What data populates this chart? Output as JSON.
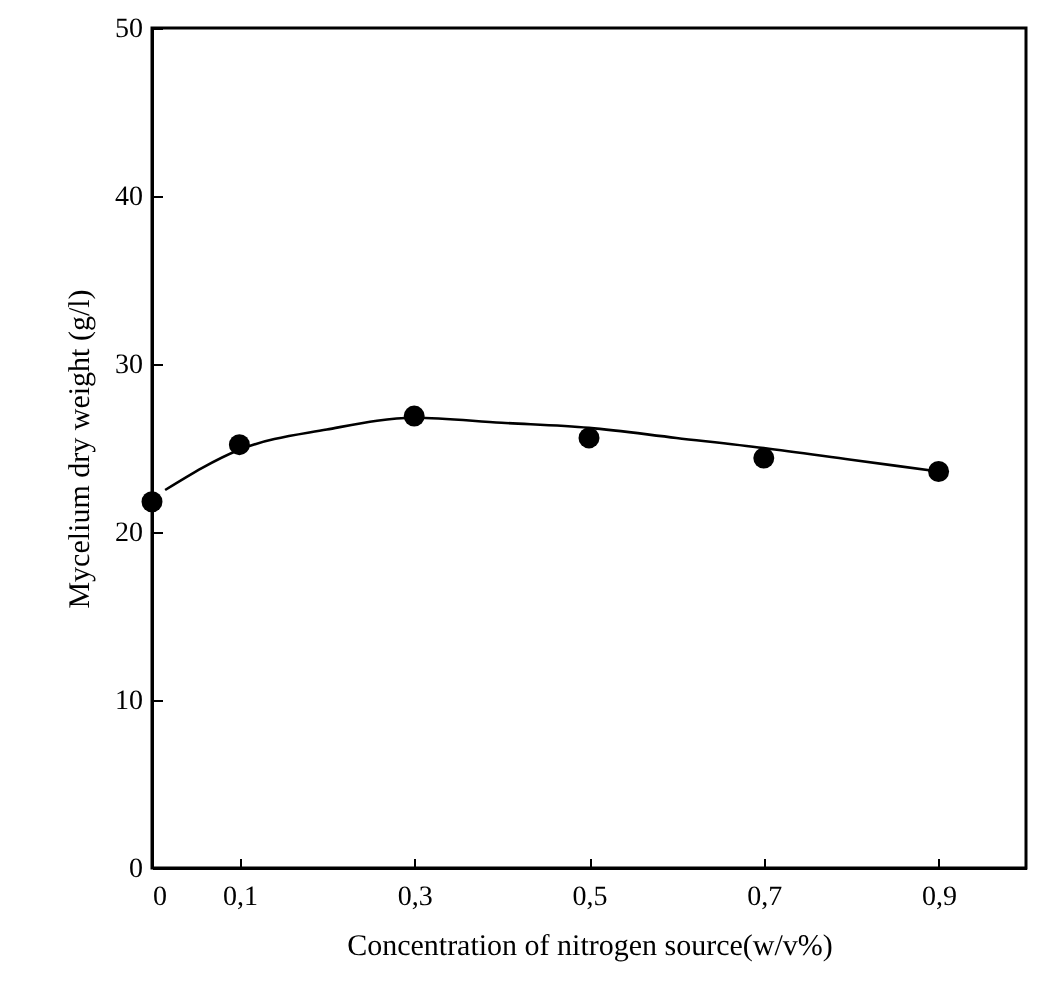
{
  "chart_data": {
    "type": "scatter",
    "xlabel": "Concentration of nitrogen source(w/v%)",
    "ylabel": "Mycelium dry weight (g/l)",
    "x": [
      0,
      0.1,
      0.3,
      0.5,
      0.7,
      0.9
    ],
    "series": [
      {
        "color": "#000000",
        "marker": "circle",
        "values": [
          21.8,
          25.2,
          26.9,
          25.6,
          24.4,
          23.6
        ]
      },
      {
        "type": "line",
        "color": "#000000",
        "line_style": "solid",
        "x": [
          0.015,
          0.1,
          0.2,
          0.3,
          0.4,
          0.5,
          0.6,
          0.7,
          0.8,
          0.9
        ],
        "values": [
          22.5,
          24.9,
          26.1,
          26.8,
          26.5,
          26.2,
          25.6,
          25.0,
          24.3,
          23.6
        ]
      }
    ],
    "xlim": [
      0,
      1
    ],
    "ylim": [
      0,
      50
    ],
    "xticks": [
      0,
      {
        "value": 0.1,
        "label": "0,1"
      },
      {
        "value": 0.3,
        "label": "0,3"
      },
      {
        "value": 0.5,
        "label": "0,5"
      },
      {
        "value": 0.7,
        "label": "0,7"
      },
      {
        "value": 0.9,
        "label": "0,9"
      }
    ],
    "yticks": [
      0,
      10,
      20,
      30,
      40,
      50
    ],
    "grid": false
  }
}
